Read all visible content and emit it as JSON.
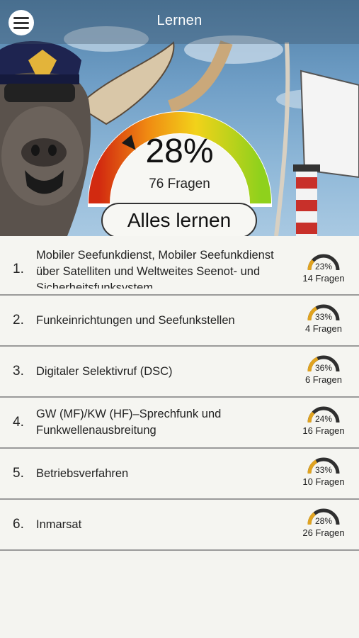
{
  "header": {
    "title": "Lernen",
    "menu_icon": "hamburger-menu-icon"
  },
  "overall": {
    "percent_label": "28%",
    "percent_value": 28,
    "questions_label": "76 Fragen",
    "button_label": "Alles lernen"
  },
  "colors": {
    "gauge_red": "#d22a10",
    "gauge_orange": "#f08a12",
    "gauge_yellow": "#f2d21a",
    "gauge_green": "#8fd11c",
    "mini_fill": "#e0a320",
    "mini_track": "#2f2f2f"
  },
  "topics": [
    {
      "num": "1.",
      "label": "Mobiler Seefunkdienst, Mobiler Seefunkdienst über Satelliten und Weltweites Seenot- und Sicherheitsfunksystem",
      "percent_label": "23%",
      "percent_value": 23,
      "questions": "14 Fragen"
    },
    {
      "num": "2.",
      "label": "Funkeinrichtungen und Seefunkstellen",
      "percent_label": "33%",
      "percent_value": 33,
      "questions": "4 Fragen"
    },
    {
      "num": "3.",
      "label": "Digitaler Selektivruf (DSC)",
      "percent_label": "36%",
      "percent_value": 36,
      "questions": "6 Fragen"
    },
    {
      "num": "4.",
      "label": "GW (MF)/KW (HF)–Sprechfunk und Funkwellenausbreitung",
      "percent_label": "24%",
      "percent_value": 24,
      "questions": "16 Fragen"
    },
    {
      "num": "5.",
      "label": "Betriebsverfahren",
      "percent_label": "33%",
      "percent_value": 33,
      "questions": "10 Fragen"
    },
    {
      "num": "6.",
      "label": "Inmarsat",
      "percent_label": "28%",
      "percent_value": 28,
      "questions": "26 Fragen"
    }
  ]
}
